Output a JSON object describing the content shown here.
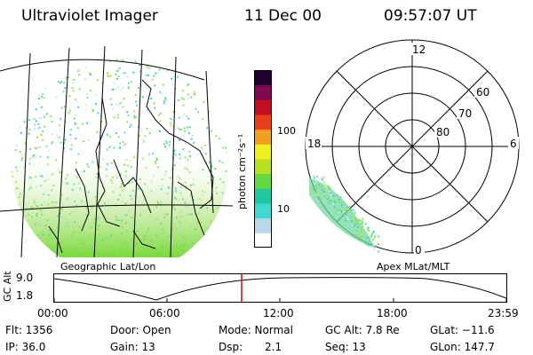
{
  "header": {
    "instrument": "Ultraviolet Imager",
    "date": "11 Dec 00",
    "time": "09:57:07 UT"
  },
  "left_panel": {
    "caption": "Geographic Lat/Lon"
  },
  "colorbar": {
    "unit_label": "photon cm⁻²s⁻¹",
    "ticks": [
      "100",
      "10"
    ],
    "colors": [
      "#ffffff",
      "#b8d8e8",
      "#40d8d0",
      "#20c8a0",
      "#60d840",
      "#b8e020",
      "#f0f020",
      "#f0a020",
      "#e84018",
      "#c01020",
      "#800850",
      "#200030"
    ]
  },
  "right_panel": {
    "caption": "Apex MLat/MLT",
    "mlt_labels": {
      "top": "12",
      "left": "18",
      "right": "6",
      "bottom": "0"
    },
    "lat_labels": [
      "60",
      "70",
      "80"
    ]
  },
  "timeline": {
    "axis_title": "GC Alt",
    "y_ticks": [
      "9.0",
      "1.8"
    ],
    "x_ticks": [
      "00:00",
      "06:00",
      "12:00",
      "18:00",
      "23:59"
    ],
    "marker_color": "#e00000"
  },
  "info": {
    "flt": "Flt: 1356",
    "ip": "IP: 36.0",
    "door": "Door: Open",
    "gain": "Gain: 13",
    "mode": "Mode: Normal",
    "dsp_label": "Dsp:",
    "dsp_value": "2.1",
    "gcalt": "GC Alt: 7.8 Re",
    "seq": "Seq: 13",
    "glat": "GLat: −11.6",
    "glon": "GLon: 147.7"
  }
}
